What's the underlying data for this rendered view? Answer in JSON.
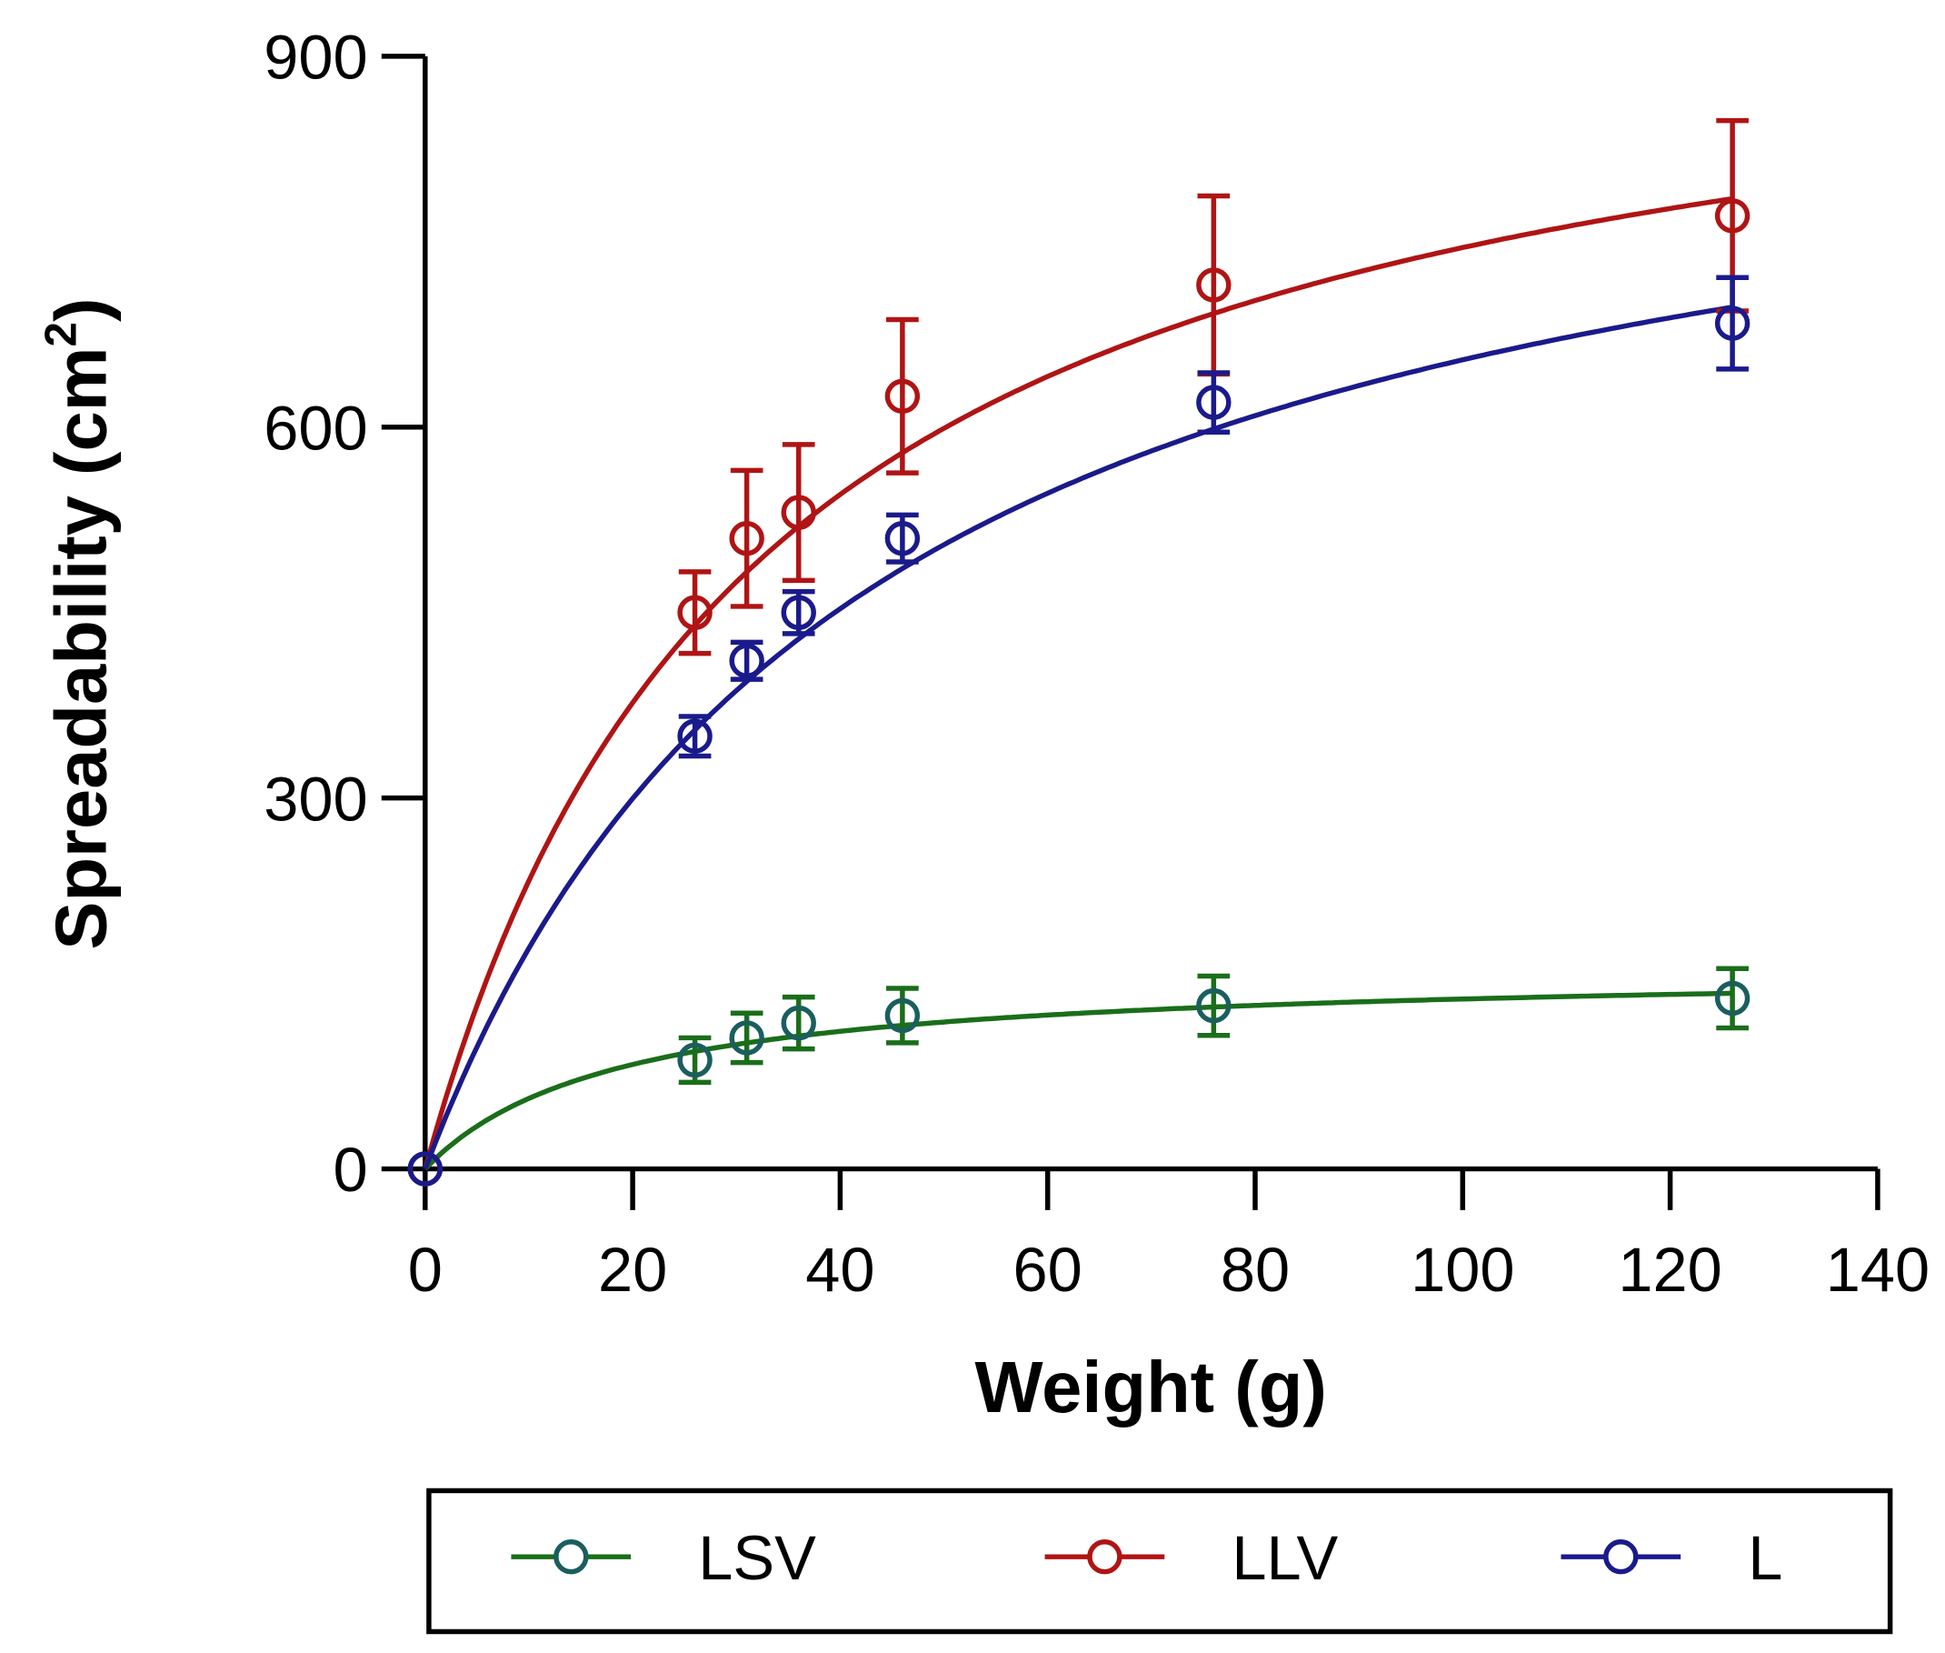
{
  "chart_data": {
    "type": "scatter",
    "xlabel": "Weight (g)",
    "ylabel": "Spreadability (cm",
    "ylabel_sup": "2",
    "ylabel_close": ")",
    "xlim": [
      0,
      140
    ],
    "ylim": [
      0,
      900
    ],
    "xticks": [
      "0",
      "20",
      "40",
      "60",
      "80",
      "100",
      "120",
      "140"
    ],
    "yticks": [
      "0",
      "300",
      "600",
      "900"
    ],
    "grid": false,
    "legend_placement": "bottom",
    "x": [
      0,
      26,
      31,
      36,
      46,
      76,
      126
    ],
    "series": [
      {
        "name": "LSV",
        "color": "#1a6e1a",
        "marker_color": "#1a5e5e",
        "values": [
          0,
          88,
          106,
          118,
          124,
          132,
          138
        ],
        "errors": [
          0,
          18,
          20,
          21,
          22,
          24,
          24
        ],
        "fit": {
          "model": "hyperbola",
          "Bmax": 163,
          "K": 18.6
        }
      },
      {
        "name": "LLV",
        "color": "#b01414",
        "marker_color": "#b01414",
        "values": [
          0,
          450,
          510,
          531,
          625,
          715,
          771
        ],
        "errors": [
          0,
          33,
          55,
          55,
          62,
          72,
          77
        ],
        "fit": {
          "model": "hyperbola",
          "Bmax": 986,
          "K": 32.3
        }
      },
      {
        "name": "L",
        "color": "#1a1a8c",
        "marker_color": "#1a1a8c",
        "values": [
          0,
          350,
          411,
          450,
          510,
          620,
          684
        ],
        "errors": [
          0,
          16,
          15,
          17,
          19,
          24,
          37
        ],
        "fit": {
          "model": "hyperbola",
          "Bmax": 930,
          "K": 42.1
        }
      }
    ]
  }
}
